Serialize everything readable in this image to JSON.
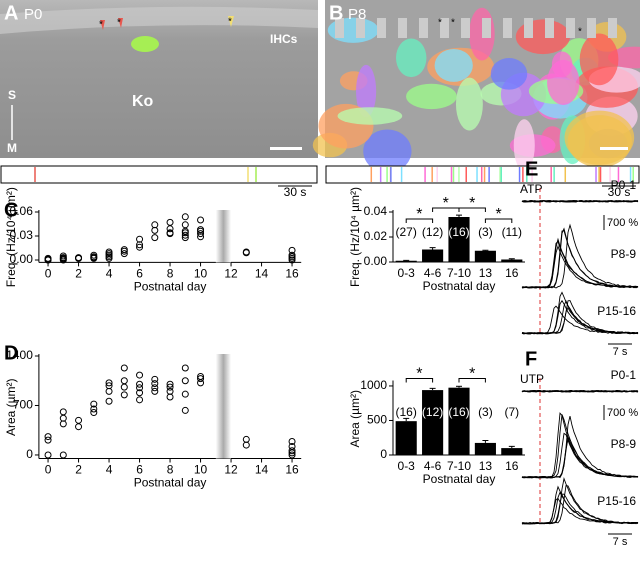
{
  "panels": {
    "A": {
      "label": "A",
      "stage": "P0",
      "ihc": "IHCs",
      "ko": "Ko",
      "s": "S",
      "m": "M",
      "star": "*"
    },
    "B": {
      "label": "B",
      "stage": "P8",
      "star": "*"
    },
    "raster_scale": "30 s",
    "C": "C",
    "D": "D",
    "E": {
      "label": "E",
      "agonist": "ATP",
      "groups": [
        "P0-1",
        "P8-9",
        "P15-16"
      ],
      "amp": "700 %",
      "time": "7 s"
    },
    "F": {
      "label": "F",
      "agonist": "UTP",
      "groups": [
        "P0-1",
        "P8-9",
        "P15-16"
      ],
      "amp": "700 %",
      "time": "7 s"
    }
  },
  "chart_data": [
    {
      "type": "scatter",
      "xlabel": "Postnatal day",
      "ylabel": "Freq. (Hz/10⁴ µm²)",
      "x": [
        0,
        0,
        0,
        0,
        1,
        1,
        1,
        1,
        1,
        2,
        2,
        2,
        3,
        3,
        3,
        3,
        4,
        4,
        4,
        4,
        4,
        5,
        5,
        5,
        6,
        6,
        6,
        7,
        7,
        7,
        8,
        8,
        8,
        8,
        9,
        9,
        9,
        9,
        9,
        9,
        10,
        10,
        10,
        10,
        10,
        13,
        13,
        16,
        16,
        16,
        16,
        16
      ],
      "values": [
        0,
        0.001,
        0.002,
        0,
        0.001,
        0.002,
        0.003,
        0.005,
        0,
        0.002,
        0.003,
        0.002,
        0.003,
        0.004,
        0.002,
        0.006,
        0.002,
        0.004,
        0.006,
        0.008,
        0.01,
        0.008,
        0.011,
        0.013,
        0.016,
        0.019,
        0.026,
        0.028,
        0.037,
        0.044,
        0.033,
        0.034,
        0.039,
        0.047,
        0.028,
        0.031,
        0.034,
        0.036,
        0.044,
        0.054,
        0.029,
        0.033,
        0.036,
        0.038,
        0.05,
        0.009,
        0.01,
        0,
        0.002,
        0.004,
        0.006,
        0.012
      ],
      "xlim": [
        -0.6,
        16.6
      ],
      "xticks": [
        0,
        2,
        4,
        6,
        8,
        10,
        12,
        14,
        16
      ],
      "ylim": [
        -0.003,
        0.06
      ],
      "yticks": [
        {
          "value": 0,
          "label": "0.00"
        },
        0.03,
        0.06
      ],
      "shaded_range": [
        11,
        12
      ]
    },
    {
      "type": "bar",
      "xlabel": "Postnatal day",
      "ylabel": "Freq. (Hz/10⁴ µm²)",
      "categories": [
        "0-3",
        "4-6",
        "7-10",
        "13",
        "16"
      ],
      "values": [
        0.001,
        0.01,
        0.036,
        0.009,
        0.002
      ],
      "errors": [
        0.0003,
        0.0015,
        0.0015,
        0.0004,
        0.0006
      ],
      "n_labels": [
        "(27)",
        "(12)",
        "(16)",
        "(3)",
        "(11)"
      ],
      "ylim": [
        0,
        0.04
      ],
      "yticks": [
        {
          "value": 0,
          "label": "0.00"
        },
        0.02,
        0.04
      ],
      "color": "#000000",
      "brackets": [
        {
          "from": "0-3",
          "to": "4-6",
          "label": "*"
        },
        {
          "from": "4-6",
          "to": "7-10",
          "label": "*"
        },
        {
          "from": "7-10",
          "to": "13",
          "label": "*"
        },
        {
          "from": "13",
          "to": "16",
          "label": "*"
        }
      ]
    },
    {
      "type": "scatter",
      "xlabel": "Postnatal day",
      "ylabel": "Area (µm²)",
      "x": [
        0,
        0,
        0,
        1,
        1,
        1,
        1,
        2,
        2,
        3,
        3,
        3,
        4,
        4,
        4,
        4,
        5,
        5,
        5,
        5,
        6,
        6,
        6,
        6,
        6,
        7,
        7,
        7,
        7,
        8,
        8,
        8,
        8,
        9,
        9,
        9,
        9,
        10,
        10,
        10,
        13,
        13,
        16,
        16,
        16,
        16,
        16
      ],
      "values": [
        0,
        210,
        260,
        0,
        440,
        520,
        610,
        400,
        490,
        600,
        650,
        720,
        760,
        900,
        980,
        1020,
        850,
        960,
        1050,
        1230,
        780,
        880,
        950,
        1000,
        1130,
        900,
        950,
        1010,
        1070,
        820,
        900,
        960,
        1000,
        630,
        860,
        1050,
        1230,
        1020,
        1080,
        1110,
        140,
        220,
        0,
        30,
        60,
        120,
        190
      ],
      "xlim": [
        -0.6,
        16.6
      ],
      "xticks": [
        0,
        2,
        4,
        6,
        8,
        10,
        12,
        14,
        16
      ],
      "ylim": [
        -50,
        1400
      ],
      "yticks": [
        0,
        700,
        1400
      ],
      "shaded_range": [
        11,
        12
      ]
    },
    {
      "type": "bar",
      "xlabel": "Postnatal day",
      "ylabel": "Area (µm²)",
      "categories": [
        "0-3",
        "4-6",
        "7-10",
        "13",
        "16"
      ],
      "values": [
        490,
        940,
        975,
        175,
        100
      ],
      "errors": [
        40,
        25,
        20,
        35,
        25
      ],
      "n_labels": [
        "(16)",
        "(12)",
        "(16)",
        "(3)",
        "(7)"
      ],
      "ylim": [
        0,
        1050
      ],
      "yticks": [
        0,
        500,
        1000
      ],
      "color": "#000000",
      "brackets": [
        {
          "from": "0-3",
          "to": "4-6",
          "label": "*"
        },
        {
          "from": "7-10",
          "to": "13",
          "label": "*"
        }
      ]
    }
  ]
}
